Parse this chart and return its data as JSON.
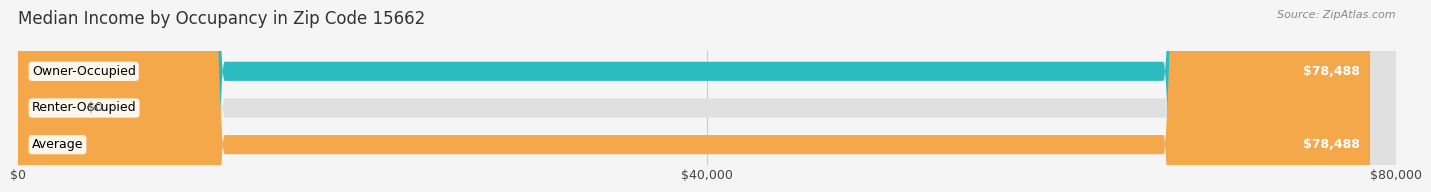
{
  "title": "Median Income by Occupancy in Zip Code 15662",
  "source": "Source: ZipAtlas.com",
  "categories": [
    "Owner-Occupied",
    "Renter-Occupied",
    "Average"
  ],
  "values": [
    78488,
    0,
    78488
  ],
  "bar_colors": [
    "#2abcbf",
    "#b39ddb",
    "#f4a84a"
  ],
  "bar_labels": [
    "$78,488",
    "$0",
    "$78,488"
  ],
  "xlim": [
    0,
    80000
  ],
  "xticks": [
    0,
    40000,
    80000
  ],
  "xtick_labels": [
    "$0",
    "$40,000",
    "$80,000"
  ],
  "background_color": "#f5f5f5",
  "bar_bg_color": "#e0e0e0",
  "title_fontsize": 12,
  "source_fontsize": 8,
  "label_fontsize": 9,
  "tick_fontsize": 9
}
